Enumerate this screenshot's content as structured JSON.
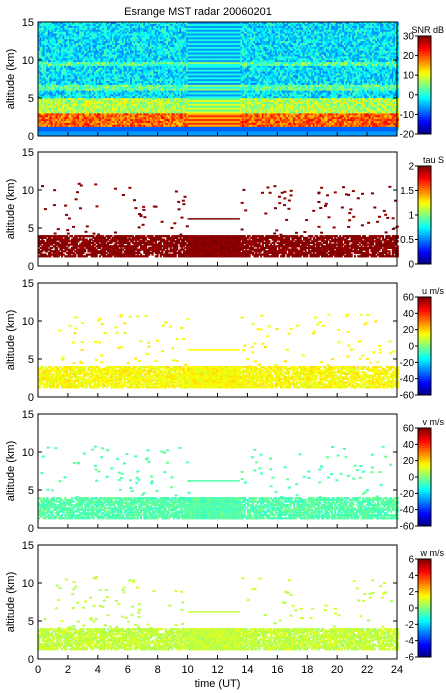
{
  "title": "Esrange MST radar 20060201",
  "chart_data": [
    {
      "type": "heatmap",
      "ylabel": "altitude (km)",
      "xlabel": "",
      "xlim": [
        0,
        24
      ],
      "ylim": [
        0,
        15
      ],
      "xticks": [],
      "yticks": [
        0,
        5,
        10,
        15
      ],
      "colorbar": {
        "label": "SNR dB",
        "range": [
          -20,
          30
        ],
        "ticks": [
          -20,
          -10,
          0,
          10,
          20,
          30
        ]
      },
      "data_gap_hours": [
        10,
        13.5
      ],
      "layers": [
        {
          "altitude_km": [
            1,
            3
          ],
          "level": 0.78
        },
        {
          "altitude_km": [
            3,
            5
          ],
          "level": 0.55
        },
        {
          "altitude_km": [
            5,
            15
          ],
          "level": 0.35
        }
      ]
    },
    {
      "type": "heatmap",
      "ylabel": "altitude (km)",
      "xlabel": "",
      "xlim": [
        0,
        24
      ],
      "ylim": [
        0,
        15
      ],
      "xticks": [],
      "yticks": [
        0,
        5,
        10,
        15
      ],
      "colorbar": {
        "label": "tau S",
        "range": [
          0,
          2
        ],
        "ticks": [
          0,
          0.5,
          1,
          1.5,
          2
        ]
      },
      "data_gap_hours": [
        10,
        13.5
      ],
      "echo_region_km": [
        1.2,
        4
      ],
      "typical_value": 2
    },
    {
      "type": "heatmap",
      "ylabel": "altitude (km)",
      "xlabel": "",
      "xlim": [
        0,
        24
      ],
      "ylim": [
        0,
        15
      ],
      "xticks": [],
      "yticks": [
        0,
        5,
        10,
        15
      ],
      "colorbar": {
        "label": "u m/s",
        "range": [
          -60,
          60
        ],
        "ticks": [
          -60,
          -40,
          -20,
          0,
          20,
          40,
          60
        ]
      },
      "data_gap_hours": [
        10,
        13.5
      ],
      "echo_region_km": [
        1.2,
        4
      ],
      "typical_value": 15
    },
    {
      "type": "heatmap",
      "ylabel": "altitude (km)",
      "xlabel": "",
      "xlim": [
        0,
        24
      ],
      "ylim": [
        0,
        15
      ],
      "xticks": [],
      "yticks": [
        0,
        5,
        10,
        15
      ],
      "colorbar": {
        "label": "v m/s",
        "range": [
          -60,
          60
        ],
        "ticks": [
          -60,
          -40,
          -20,
          0,
          20,
          40,
          60
        ]
      },
      "data_gap_hours": [
        10,
        13.5
      ],
      "echo_region_km": [
        1.2,
        4
      ],
      "typical_value": -5
    },
    {
      "type": "heatmap",
      "ylabel": "altitude (km)",
      "xlabel": "time (UT)",
      "xlim": [
        0,
        24
      ],
      "ylim": [
        0,
        15
      ],
      "xticks": [
        0,
        2,
        4,
        6,
        8,
        10,
        12,
        14,
        16,
        18,
        20,
        22,
        24
      ],
      "yticks": [
        0,
        5,
        10,
        15
      ],
      "colorbar": {
        "label": "w m/s",
        "range": [
          -6,
          6
        ],
        "ticks": [
          -6,
          -4,
          -2,
          0,
          2,
          4,
          6
        ]
      },
      "data_gap_hours": [
        10,
        13.5
      ],
      "echo_region_km": [
        1.2,
        4
      ],
      "typical_value": 0.8
    }
  ]
}
